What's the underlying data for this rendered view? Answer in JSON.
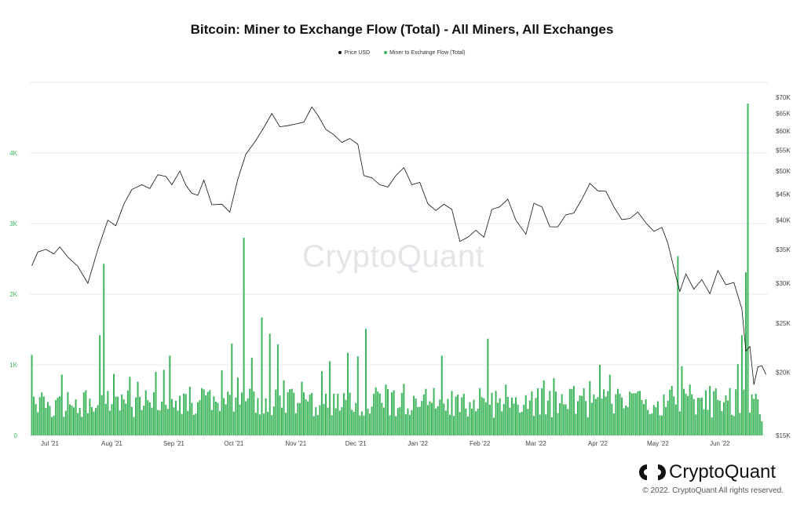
{
  "title": "Bitcoin: Miner to Exchange Flow (Total) - All Miners, All Exchanges",
  "legend": [
    {
      "label": "Price USD",
      "color": "#111111"
    },
    {
      "label": "Miner to Exchange Flow (Total)",
      "color": "#3cb55a"
    }
  ],
  "watermark": "CryptoQuant",
  "brand": {
    "name": "CryptoQuant",
    "logo_icon": "cryptoquant-logo-icon"
  },
  "copyright": "© 2022. CryptoQuant All rights reserved.",
  "chart_data": {
    "type": "bar",
    "series": [
      {
        "name": "Miner to Exchange Flow (Total)",
        "kind": "bar",
        "axis": "left",
        "color": "#3cb55a",
        "points": [
          [
            "2021-06-22",
            1140
          ],
          [
            "2021-06-28",
            550
          ],
          [
            "2021-07-03",
            280
          ],
          [
            "2021-07-07",
            860
          ],
          [
            "2021-07-11",
            440
          ],
          [
            "2021-07-16",
            390
          ],
          [
            "2021-07-21",
            520
          ],
          [
            "2021-07-26",
            1420
          ],
          [
            "2021-07-28",
            2430
          ],
          [
            "2021-08-02",
            870
          ],
          [
            "2021-08-06",
            580
          ],
          [
            "2021-08-10",
            830
          ],
          [
            "2021-08-14",
            760
          ],
          [
            "2021-08-19",
            500
          ],
          [
            "2021-08-23",
            900
          ],
          [
            "2021-08-27",
            930
          ],
          [
            "2021-08-30",
            1130
          ],
          [
            "2021-09-04",
            560
          ],
          [
            "2021-09-09",
            690
          ],
          [
            "2021-09-14",
            500
          ],
          [
            "2021-09-19",
            640
          ],
          [
            "2021-09-25",
            920
          ],
          [
            "2021-09-30",
            1300
          ],
          [
            "2021-10-03",
            820
          ],
          [
            "2021-10-06",
            2800
          ],
          [
            "2021-10-10",
            1100
          ],
          [
            "2021-10-15",
            1670
          ],
          [
            "2021-10-19",
            1440
          ],
          [
            "2021-10-23",
            1290
          ],
          [
            "2021-10-26",
            780
          ],
          [
            "2021-10-30",
            660
          ],
          [
            "2021-11-04",
            760
          ],
          [
            "2021-11-09",
            600
          ],
          [
            "2021-11-14",
            910
          ],
          [
            "2021-11-18",
            1050
          ],
          [
            "2021-11-22",
            590
          ],
          [
            "2021-11-27",
            1170
          ],
          [
            "2021-12-02",
            1120
          ],
          [
            "2021-12-06",
            1510
          ],
          [
            "2021-12-11",
            680
          ],
          [
            "2021-12-16",
            720
          ],
          [
            "2021-12-20",
            640
          ],
          [
            "2021-12-25",
            730
          ],
          [
            "2021-12-30",
            560
          ],
          [
            "2022-01-04",
            580
          ],
          [
            "2022-01-09",
            670
          ],
          [
            "2022-01-13",
            1130
          ],
          [
            "2022-01-18",
            630
          ],
          [
            "2022-01-23",
            540
          ],
          [
            "2022-01-27",
            470
          ],
          [
            "2022-02-01",
            670
          ],
          [
            "2022-02-05",
            1370
          ],
          [
            "2022-02-09",
            630
          ],
          [
            "2022-02-14",
            720
          ],
          [
            "2022-02-19",
            540
          ],
          [
            "2022-02-24",
            570
          ],
          [
            "2022-03-01",
            530
          ],
          [
            "2022-03-05",
            780
          ],
          [
            "2022-03-10",
            810
          ],
          [
            "2022-03-15",
            440
          ],
          [
            "2022-03-20",
            700
          ],
          [
            "2022-03-24",
            560
          ],
          [
            "2022-03-28",
            770
          ],
          [
            "2022-04-02",
            1000
          ],
          [
            "2022-04-07",
            860
          ],
          [
            "2022-04-12",
            590
          ],
          [
            "2022-04-17",
            620
          ],
          [
            "2022-04-23",
            500
          ],
          [
            "2022-04-29",
            430
          ],
          [
            "2022-05-04",
            580
          ],
          [
            "2022-05-08",
            700
          ],
          [
            "2022-05-11",
            2540
          ],
          [
            "2022-05-13",
            980
          ],
          [
            "2022-05-17",
            720
          ],
          [
            "2022-05-22",
            530
          ],
          [
            "2022-05-27",
            700
          ],
          [
            "2022-06-01",
            490
          ],
          [
            "2022-06-06",
            670
          ],
          [
            "2022-06-10",
            1010
          ],
          [
            "2022-06-12",
            1420
          ],
          [
            "2022-06-14",
            2310
          ],
          [
            "2022-06-15",
            4700
          ],
          [
            "2022-06-17",
            580
          ],
          [
            "2022-06-20",
            510
          ],
          [
            "2022-06-22",
            200
          ]
        ]
      },
      {
        "name": "Price USD",
        "kind": "line",
        "axis": "right",
        "color": "#111111",
        "points": [
          [
            "2021-06-22",
            32500
          ],
          [
            "2021-06-25",
            34600
          ],
          [
            "2021-06-29",
            35000
          ],
          [
            "2021-07-03",
            34300
          ],
          [
            "2021-07-06",
            35400
          ],
          [
            "2021-07-10",
            33800
          ],
          [
            "2021-07-15",
            32400
          ],
          [
            "2021-07-20",
            30000
          ],
          [
            "2021-07-25",
            35000
          ],
          [
            "2021-07-30",
            40000
          ],
          [
            "2021-08-03",
            39000
          ],
          [
            "2021-08-07",
            43000
          ],
          [
            "2021-08-11",
            46000
          ],
          [
            "2021-08-16",
            47000
          ],
          [
            "2021-08-20",
            46200
          ],
          [
            "2021-08-24",
            49200
          ],
          [
            "2021-08-28",
            48800
          ],
          [
            "2021-08-31",
            47000
          ],
          [
            "2021-09-04",
            50000
          ],
          [
            "2021-09-07",
            46900
          ],
          [
            "2021-09-10",
            45200
          ],
          [
            "2021-09-13",
            44800
          ],
          [
            "2021-09-16",
            48000
          ],
          [
            "2021-09-20",
            42900
          ],
          [
            "2021-09-25",
            43000
          ],
          [
            "2021-09-29",
            41500
          ],
          [
            "2021-10-03",
            48200
          ],
          [
            "2021-10-07",
            54000
          ],
          [
            "2021-10-12",
            57500
          ],
          [
            "2021-10-16",
            61000
          ],
          [
            "2021-10-20",
            65000
          ],
          [
            "2021-10-24",
            61200
          ],
          [
            "2021-10-28",
            61500
          ],
          [
            "2021-11-01",
            62000
          ],
          [
            "2021-11-05",
            62500
          ],
          [
            "2021-11-09",
            67000
          ],
          [
            "2021-11-12",
            64500
          ],
          [
            "2021-11-16",
            60500
          ],
          [
            "2021-11-20",
            59000
          ],
          [
            "2021-11-24",
            57000
          ],
          [
            "2021-11-28",
            58000
          ],
          [
            "2021-12-02",
            56500
          ],
          [
            "2021-12-05",
            49000
          ],
          [
            "2021-12-09",
            48500
          ],
          [
            "2021-12-13",
            47000
          ],
          [
            "2021-12-17",
            46500
          ],
          [
            "2021-12-21",
            49000
          ],
          [
            "2021-12-25",
            50800
          ],
          [
            "2021-12-29",
            47000
          ],
          [
            "2022-01-02",
            47500
          ],
          [
            "2022-01-06",
            43100
          ],
          [
            "2022-01-10",
            41800
          ],
          [
            "2022-01-14",
            43000
          ],
          [
            "2022-01-18",
            42000
          ],
          [
            "2022-01-22",
            36300
          ],
          [
            "2022-01-26",
            37000
          ],
          [
            "2022-01-30",
            38200
          ],
          [
            "2022-02-03",
            37000
          ],
          [
            "2022-02-07",
            42000
          ],
          [
            "2022-02-11",
            42500
          ],
          [
            "2022-02-15",
            44000
          ],
          [
            "2022-02-19",
            40000
          ],
          [
            "2022-02-24",
            37500
          ],
          [
            "2022-02-28",
            43200
          ],
          [
            "2022-03-04",
            42500
          ],
          [
            "2022-03-08",
            38800
          ],
          [
            "2022-03-12",
            38800
          ],
          [
            "2022-03-16",
            41000
          ],
          [
            "2022-03-20",
            41300
          ],
          [
            "2022-03-24",
            44000
          ],
          [
            "2022-03-28",
            47300
          ],
          [
            "2022-04-01",
            45700
          ],
          [
            "2022-04-05",
            45600
          ],
          [
            "2022-04-09",
            42500
          ],
          [
            "2022-04-13",
            40100
          ],
          [
            "2022-04-17",
            40300
          ],
          [
            "2022-04-21",
            41500
          ],
          [
            "2022-04-25",
            39500
          ],
          [
            "2022-04-29",
            38000
          ],
          [
            "2022-05-03",
            38700
          ],
          [
            "2022-05-06",
            36000
          ],
          [
            "2022-05-10",
            31000
          ],
          [
            "2022-05-12",
            28900
          ],
          [
            "2022-05-15",
            31300
          ],
          [
            "2022-05-19",
            29200
          ],
          [
            "2022-05-23",
            30500
          ],
          [
            "2022-05-27",
            28600
          ],
          [
            "2022-05-31",
            31800
          ],
          [
            "2022-06-04",
            29800
          ],
          [
            "2022-06-08",
            30100
          ],
          [
            "2022-06-12",
            26700
          ],
          [
            "2022-06-14",
            22000
          ],
          [
            "2022-06-16",
            22500
          ],
          [
            "2022-06-18",
            18900
          ],
          [
            "2022-06-20",
            20500
          ],
          [
            "2022-06-22",
            20600
          ],
          [
            "2022-06-24",
            19800
          ]
        ]
      }
    ],
    "y_left": {
      "ticks": [
        0,
        1000,
        2000,
        3000,
        4000
      ],
      "tick_labels": [
        "0",
        "1K",
        "2K",
        "3K",
        "4K"
      ],
      "range": [
        0,
        5000
      ],
      "color": "#3cb55a"
    },
    "y_right": {
      "scale": "log",
      "ticks": [
        15000,
        20000,
        25000,
        30000,
        35000,
        40000,
        45000,
        50000,
        55000,
        60000,
        65000,
        70000
      ],
      "tick_labels": [
        "$15K",
        "$20K",
        "$25K",
        "$30K",
        "$35K",
        "$40K",
        "$45K",
        "$50K",
        "$55K",
        "$60K",
        "$65K",
        "$70K"
      ],
      "range": [
        15000,
        72000
      ]
    },
    "x_axis": {
      "range": [
        "2021-06-21",
        "2022-06-25"
      ],
      "ticks": [
        {
          "date": "2021-07-01",
          "label": "Jul '21"
        },
        {
          "date": "2021-08-01",
          "label": "Aug '21"
        },
        {
          "date": "2021-09-01",
          "label": "Sep '21"
        },
        {
          "date": "2021-10-01",
          "label": "Oct '21"
        },
        {
          "date": "2021-11-01",
          "label": "Nov '21"
        },
        {
          "date": "2021-12-01",
          "label": "Dec '21"
        },
        {
          "date": "2022-01-01",
          "label": "Jan '22"
        },
        {
          "date": "2022-02-01",
          "label": "Feb '22"
        },
        {
          "date": "2022-03-01",
          "label": "Mar '22"
        },
        {
          "date": "2022-04-01",
          "label": "Apr '22"
        },
        {
          "date": "2022-05-01",
          "label": "May '22"
        },
        {
          "date": "2022-06-01",
          "label": "Jun '22"
        }
      ]
    },
    "grid": true,
    "legend_position": "top"
  }
}
